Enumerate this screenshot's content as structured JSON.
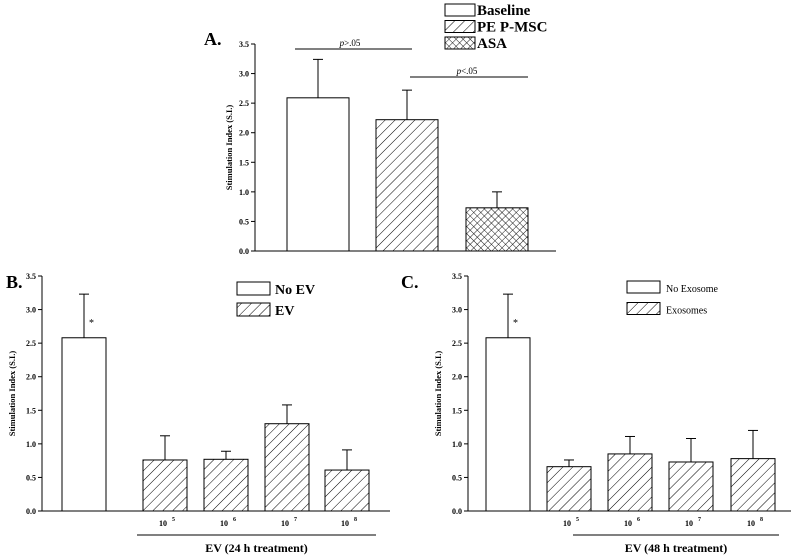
{
  "chart_data": [
    {
      "panel": "A.",
      "type": "bar",
      "ylabel": "Stimulation Index (S.I.)",
      "ylim": [
        0,
        3.5
      ],
      "yticks": [
        "0.0",
        "0.5",
        "1.0",
        "1.5",
        "2.0",
        "2.5",
        "3.0",
        "3.5"
      ],
      "legend": [
        "Baseline",
        "PE P-MSC",
        "ASA"
      ],
      "legend_position": "top-right",
      "values": [
        2.59,
        2.22,
        0.73
      ],
      "errors": [
        0.65,
        0.5,
        0.27
      ],
      "patterns": [
        "none",
        "diag",
        "cross"
      ],
      "annotations": [
        {
          "label": "p",
          "suffix": ">.05"
        },
        {
          "label": "p",
          "suffix": "<.05"
        }
      ]
    },
    {
      "panel": "B.",
      "type": "bar",
      "ylabel": "Stimulation Index (S.I.)",
      "xlabel": "EV (24 h treatment)",
      "ylim": [
        0,
        3.5
      ],
      "yticks": [
        "0.0",
        "0.5",
        "1.0",
        "1.5",
        "2.0",
        "2.5",
        "3.0",
        "3.5"
      ],
      "legend": [
        "No EV",
        "EV"
      ],
      "legend_position": "top-right",
      "categories": [
        "",
        "10^5",
        "10^6",
        "10^7",
        "10^8"
      ],
      "tick_base": [
        "",
        "10",
        "10",
        "10",
        "10"
      ],
      "tick_exp": [
        "",
        "5",
        "6",
        "7",
        "8"
      ],
      "values": [
        2.58,
        0.76,
        0.77,
        1.3,
        0.61
      ],
      "errors": [
        0.65,
        0.36,
        0.12,
        0.28,
        0.3
      ],
      "patterns": [
        "none",
        "diag",
        "diag",
        "diag",
        "diag"
      ],
      "star": "*"
    },
    {
      "panel": "C.",
      "type": "bar",
      "ylabel": "Stimulation Index (S.I.)",
      "xlabel": "EV (48 h treatment)",
      "ylim": [
        0,
        3.5
      ],
      "yticks": [
        "0.0",
        "0.5",
        "1.0",
        "1.5",
        "2.0",
        "2.5",
        "3.0",
        "3.5"
      ],
      "legend": [
        "No Exosome",
        "Exosomes"
      ],
      "legend_position": "top-right",
      "categories": [
        "",
        "10^5",
        "10^6",
        "10^7",
        "10^8"
      ],
      "tick_base": [
        "",
        "10",
        "10",
        "10",
        "10"
      ],
      "tick_exp": [
        "",
        "5",
        "6",
        "7",
        "8"
      ],
      "values": [
        2.58,
        0.66,
        0.85,
        0.73,
        0.78
      ],
      "errors": [
        0.65,
        0.1,
        0.26,
        0.35,
        0.42
      ],
      "patterns": [
        "none",
        "diag",
        "diag",
        "diag",
        "diag"
      ],
      "star": "*"
    }
  ]
}
